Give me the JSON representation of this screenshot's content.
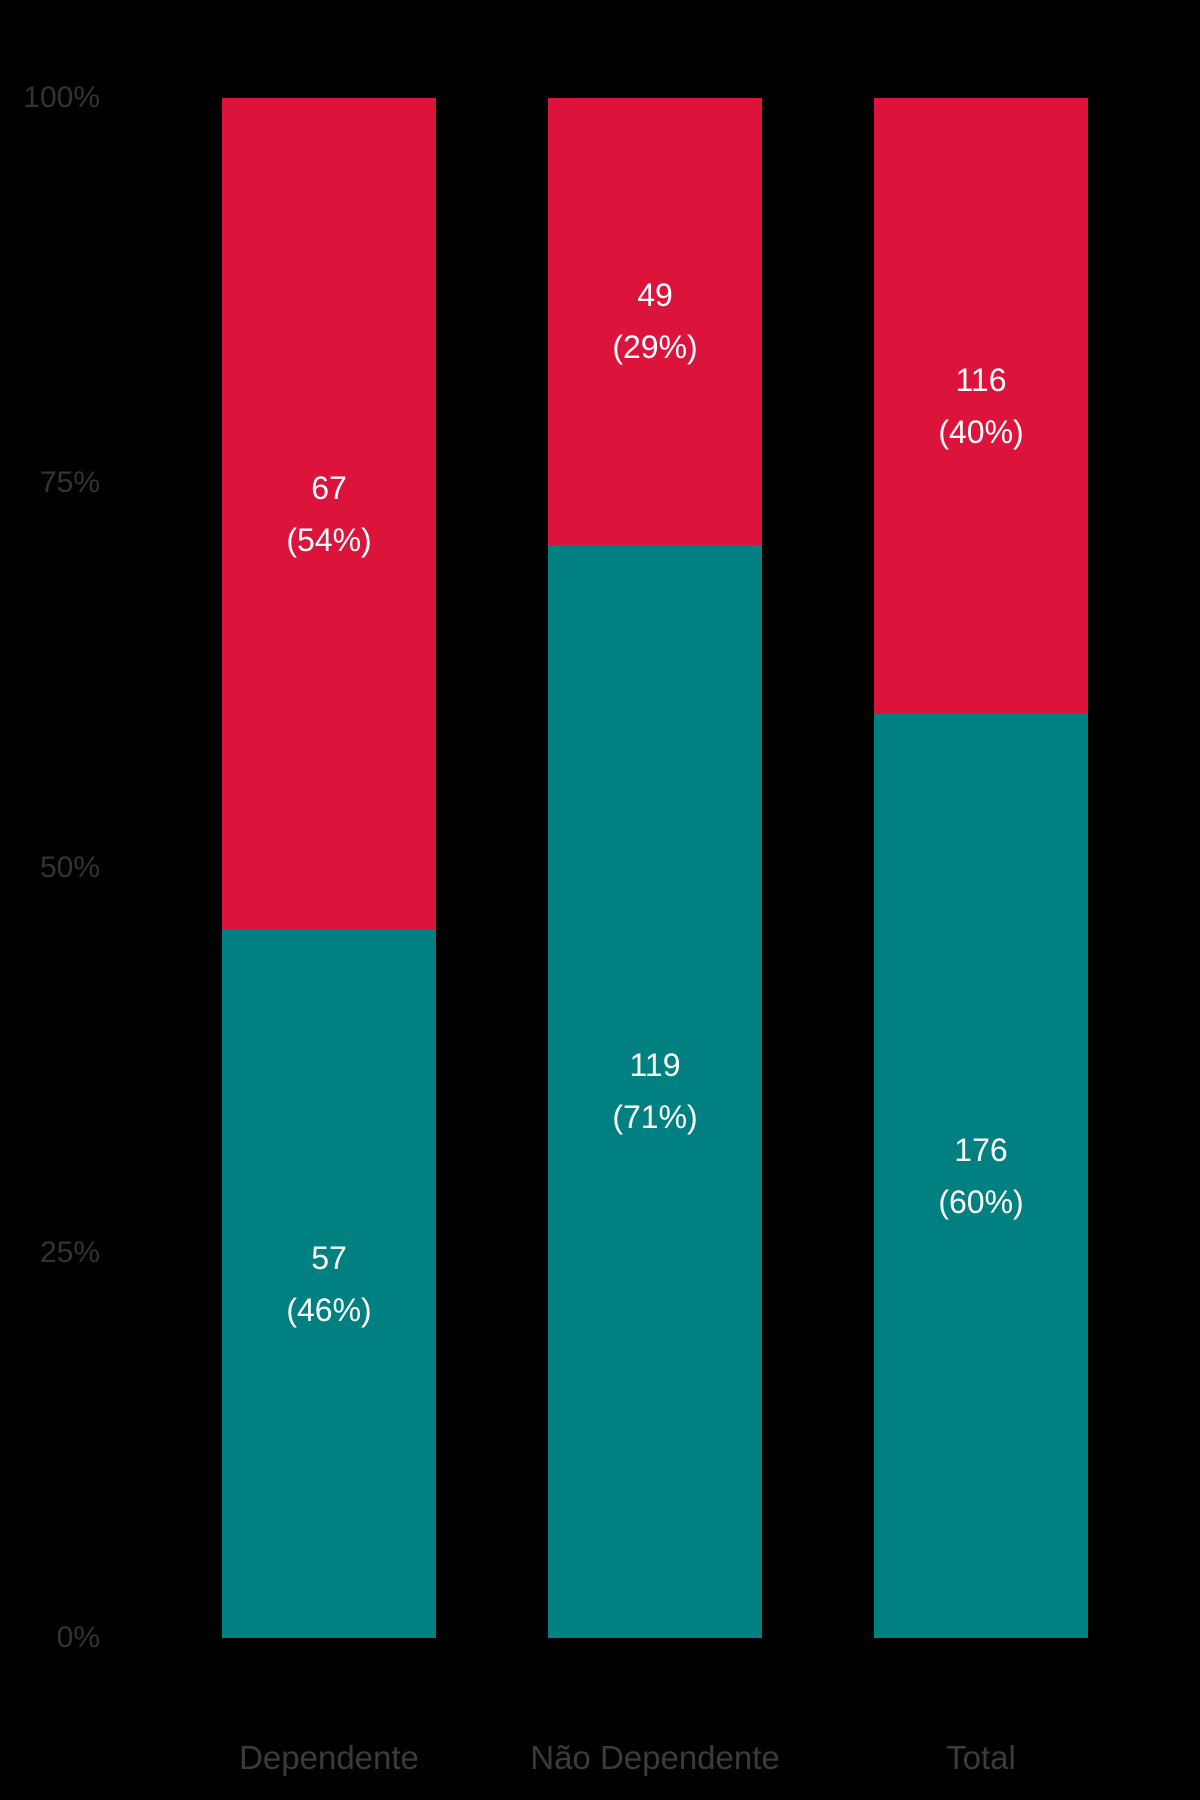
{
  "chart_data": {
    "type": "bar",
    "variant": "stacked-100-percent-column",
    "background_color": "#000000",
    "grid": false,
    "legend": "none",
    "categories": [
      "Dependente",
      "Não Dependente",
      "Total"
    ],
    "series": [
      {
        "position": "bottom",
        "color": "#008080",
        "values": [
          57,
          119,
          176
        ],
        "percents": [
          46,
          71,
          60
        ]
      },
      {
        "position": "top",
        "color": "#DC143C",
        "values": [
          67,
          49,
          116
        ],
        "percents": [
          54,
          29,
          40
        ]
      }
    ],
    "bars": [
      {
        "category": "Dependente",
        "bottom": {
          "value": 57,
          "pct": 46,
          "count_label": "57",
          "pct_label": "(46%)"
        },
        "top": {
          "value": 67,
          "pct": 54,
          "count_label": "67",
          "pct_label": "(54%)"
        }
      },
      {
        "category": "Não Dependente",
        "bottom": {
          "value": 119,
          "pct": 71,
          "count_label": "119",
          "pct_label": "(71%)"
        },
        "top": {
          "value": 49,
          "pct": 29,
          "count_label": "49",
          "pct_label": "(29%)"
        }
      },
      {
        "category": "Total",
        "bottom": {
          "value": 176,
          "pct": 60,
          "count_label": "176",
          "pct_label": "(60%)"
        },
        "top": {
          "value": 116,
          "pct": 40,
          "count_label": "116",
          "pct_label": "(40%)"
        }
      }
    ],
    "series_colors": {
      "bottom": "#008080",
      "top": "#DC143C"
    },
    "y_axis": {
      "ticks": [
        "100%",
        "75%",
        "50%",
        "25%",
        "0%"
      ],
      "min": 0,
      "max": 100,
      "unit": "%"
    },
    "text_colors": {
      "tick": "#333333",
      "category": "#3B3B3B",
      "bar_label": "#FFFFFF"
    }
  }
}
